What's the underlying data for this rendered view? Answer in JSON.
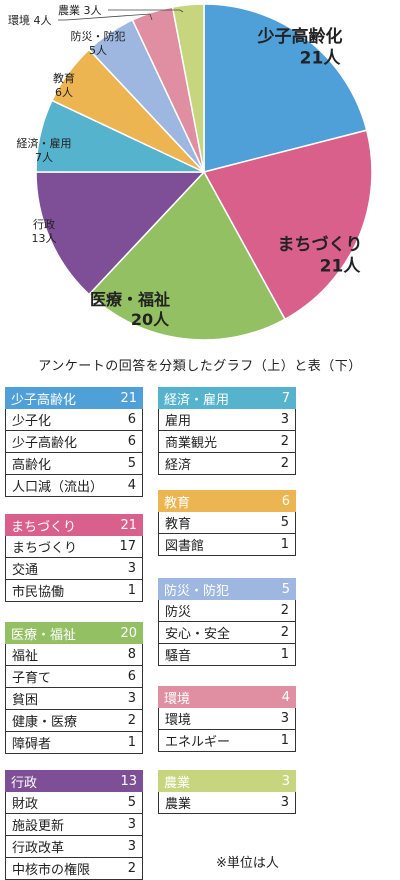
{
  "chart_data": {
    "type": "pie",
    "slices": [
      {
        "label": "少子高齢化",
        "value": 21,
        "value_label": "21人",
        "color": "#4f9fd8"
      },
      {
        "label": "まちづくり",
        "value": 21,
        "value_label": "21人",
        "color": "#d9608a"
      },
      {
        "label": "医療・福祉",
        "value": 20,
        "value_label": "20人",
        "color": "#94c064"
      },
      {
        "label": "行政",
        "value": 13,
        "value_label": "13人",
        "color": "#7e4e96"
      },
      {
        "label": "経済・雇用",
        "value": 7,
        "value_label": "7人",
        "color": "#55b3cd"
      },
      {
        "label": "教育",
        "value": 6,
        "value_label": "6人",
        "color": "#ecb551"
      },
      {
        "label": "防災・防犯",
        "value": 5,
        "value_label": "5人",
        "color": "#9db7e0"
      },
      {
        "label": "環境",
        "value": 4,
        "value_label": "4人",
        "color": "#e08fa2"
      },
      {
        "label": "農業",
        "value": 3,
        "value_label": "3人",
        "color": "#c7d67e"
      }
    ]
  },
  "caption": "アンケートの回答を分類したグラフ（上）と表（下）",
  "tables": [
    {
      "title": "少子高齢化",
      "total": "21",
      "color": "#4f9fd8",
      "rows": [
        {
          "label": "少子化",
          "value": "6"
        },
        {
          "label": "少子高齢化",
          "value": "6"
        },
        {
          "label": "高齢化",
          "value": "5"
        },
        {
          "label": "人口減（流出）",
          "value": "4"
        }
      ]
    },
    {
      "title": "経済・雇用",
      "total": "7",
      "color": "#55b3cd",
      "rows": [
        {
          "label": "雇用",
          "value": "3"
        },
        {
          "label": "商業観光",
          "value": "2"
        },
        {
          "label": "経済",
          "value": "2"
        }
      ]
    },
    {
      "title": "まちづくり",
      "total": "21",
      "color": "#d9608a",
      "rows": [
        {
          "label": "まちづくり",
          "value": "17"
        },
        {
          "label": "交通",
          "value": "3"
        },
        {
          "label": "市民協働",
          "value": "1"
        }
      ]
    },
    {
      "title": "教育",
      "total": "6",
      "color": "#ecb551",
      "rows": [
        {
          "label": "教育",
          "value": "5"
        },
        {
          "label": "図書館",
          "value": "1"
        }
      ]
    },
    {
      "title": "防災・防犯",
      "total": "5",
      "color": "#9db7e0",
      "rows": [
        {
          "label": "防災",
          "value": "2"
        },
        {
          "label": "安心・安全",
          "value": "2"
        },
        {
          "label": "騒音",
          "value": "1"
        }
      ]
    },
    {
      "title": "医療・福祉",
      "total": "20",
      "color": "#94c064",
      "rows": [
        {
          "label": "福祉",
          "value": "8"
        },
        {
          "label": "子育て",
          "value": "6"
        },
        {
          "label": "貧困",
          "value": "3"
        },
        {
          "label": "健康・医療",
          "value": "2"
        },
        {
          "label": "障碍者",
          "value": "1"
        }
      ]
    },
    {
      "title": "環境",
      "total": "4",
      "color": "#e08fa2",
      "rows": [
        {
          "label": "環境",
          "value": "3"
        },
        {
          "label": "エネルギー",
          "value": "1"
        }
      ]
    },
    {
      "title": "行政",
      "total": "13",
      "color": "#7e4e96",
      "rows": [
        {
          "label": "財政",
          "value": "5"
        },
        {
          "label": "施設更新",
          "value": "3"
        },
        {
          "label": "行政改革",
          "value": "3"
        },
        {
          "label": "中核市の権限",
          "value": "2"
        }
      ]
    },
    {
      "title": "農業",
      "total": "3",
      "color": "#c7d67e",
      "rows": [
        {
          "label": "農業",
          "value": "3"
        }
      ]
    }
  ],
  "note": "※単位は人"
}
